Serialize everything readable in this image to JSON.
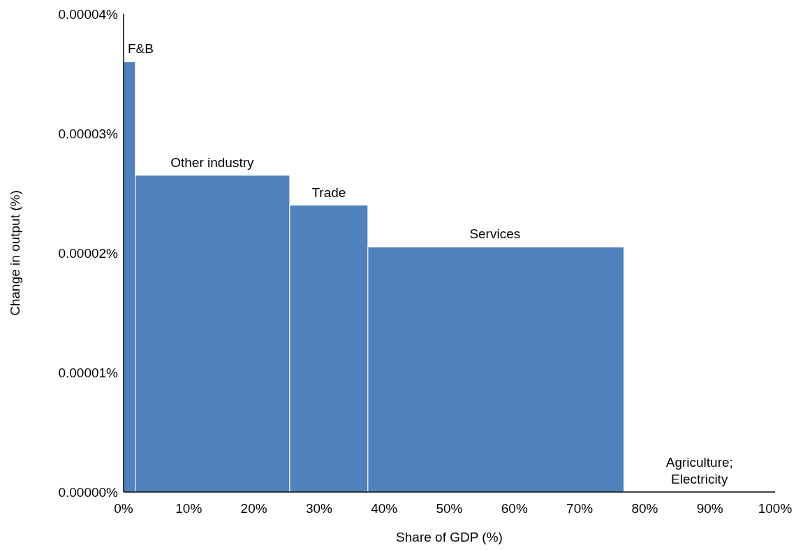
{
  "chart_data": {
    "type": "histogram",
    "xlabel": "Share of GDP (%)",
    "ylabel": "Change in output (%)",
    "bins": [
      0,
      1.8,
      25.5,
      37.5,
      76.8
    ],
    "values": [
      3.6e-05,
      2.65e-05,
      2.4e-05,
      2.05e-05
    ],
    "color": "#4f81bd",
    "xlim": [
      0,
      100
    ],
    "xticks": [
      {
        "value": 0,
        "label": "0%"
      },
      {
        "value": 10,
        "label": "10%"
      },
      {
        "value": 20,
        "label": "20%"
      },
      {
        "value": 30,
        "label": "30%"
      },
      {
        "value": 40,
        "label": "40%"
      },
      {
        "value": 50,
        "label": "50%"
      },
      {
        "value": 60,
        "label": "60%"
      },
      {
        "value": 70,
        "label": "70%"
      },
      {
        "value": 80,
        "label": "80%"
      },
      {
        "value": 90,
        "label": "90%"
      },
      {
        "value": 100,
        "label": "100%"
      }
    ],
    "ylim": [
      0,
      4e-05
    ],
    "yticks": [
      {
        "value": 0,
        "label": "0.00000%"
      },
      {
        "value": 1e-05,
        "label": "0.00001%"
      },
      {
        "value": 2e-05,
        "label": "0.00002%"
      },
      {
        "value": 3e-05,
        "label": "0.00003%"
      },
      {
        "value": 4e-05,
        "label": "0.00004%"
      }
    ],
    "annotations": [
      {
        "text": "F&B",
        "x": 0.9,
        "y": 3.6e-05
      },
      {
        "text": "Other industry",
        "x": 13.6,
        "y": 2.65e-05
      },
      {
        "text": "Trade",
        "x": 31.5,
        "y": 2.4e-05
      },
      {
        "text": "Services",
        "x": 57,
        "y": 2.05e-05
      },
      "Agriculture;\nElectricity"
    ],
    "grid": false
  }
}
